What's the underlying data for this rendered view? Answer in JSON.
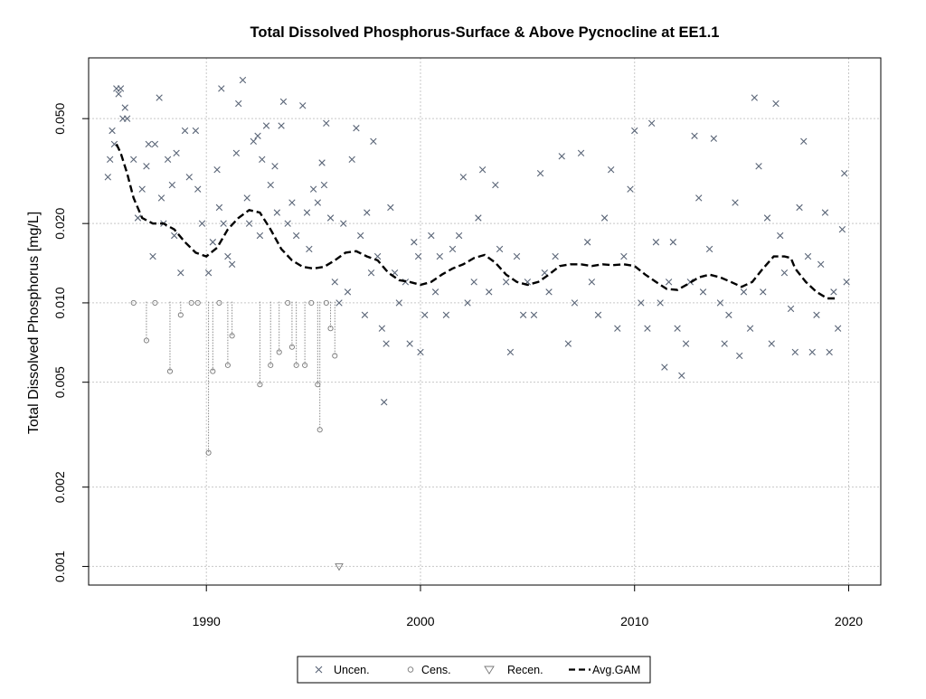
{
  "chart_data": {
    "type": "scatter",
    "title": "Total Dissolved Phosphorus-Surface & Above Pycnocline at EE1.1",
    "xlabel": "",
    "ylabel": "Total Dissolved Phosphorus [mg/L]",
    "y_scale": "log",
    "xlim": [
      1984.5,
      2021.5
    ],
    "ylim": [
      0.00085,
      0.085
    ],
    "x_ticks": [
      "1990",
      "2000",
      "2010",
      "2020"
    ],
    "y_ticks": [
      "0.001",
      "0.002",
      "0.005",
      "0.010",
      "0.020",
      "0.050"
    ],
    "grid": true,
    "legend_position": "bottom",
    "legend": [
      "Uncen.",
      "Cens.",
      "Recen.",
      "Avg.GAM"
    ],
    "series": [
      {
        "name": "Uncen.",
        "marker": "x",
        "color": "#5a6577",
        "points": [
          [
            1985.4,
            0.03
          ],
          [
            1985.5,
            0.035
          ],
          [
            1985.6,
            0.045
          ],
          [
            1985.7,
            0.04
          ],
          [
            1985.8,
            0.065
          ],
          [
            1985.9,
            0.062
          ],
          [
            1986.0,
            0.065
          ],
          [
            1986.1,
            0.05
          ],
          [
            1986.2,
            0.055
          ],
          [
            1986.3,
            0.05
          ],
          [
            1986.6,
            0.035
          ],
          [
            1986.8,
            0.021
          ],
          [
            1987.0,
            0.027
          ],
          [
            1987.2,
            0.033
          ],
          [
            1987.3,
            0.04
          ],
          [
            1987.5,
            0.015
          ],
          [
            1987.6,
            0.04
          ],
          [
            1987.8,
            0.06
          ],
          [
            1987.9,
            0.025
          ],
          [
            1988.0,
            0.02
          ],
          [
            1988.2,
            0.035
          ],
          [
            1988.4,
            0.028
          ],
          [
            1988.5,
            0.018
          ],
          [
            1988.6,
            0.037
          ],
          [
            1988.8,
            0.013
          ],
          [
            1989.0,
            0.045
          ],
          [
            1989.2,
            0.03
          ],
          [
            1989.5,
            0.045
          ],
          [
            1989.6,
            0.027
          ],
          [
            1989.8,
            0.02
          ],
          [
            1990.1,
            0.013
          ],
          [
            1990.3,
            0.017
          ],
          [
            1990.5,
            0.032
          ],
          [
            1990.6,
            0.023
          ],
          [
            1990.7,
            0.065
          ],
          [
            1990.8,
            0.02
          ],
          [
            1991.0,
            0.015
          ],
          [
            1991.2,
            0.014
          ],
          [
            1991.4,
            0.037
          ],
          [
            1991.5,
            0.057
          ],
          [
            1991.7,
            0.07
          ],
          [
            1991.9,
            0.025
          ],
          [
            1992.0,
            0.02
          ],
          [
            1992.2,
            0.041
          ],
          [
            1992.4,
            0.043
          ],
          [
            1992.5,
            0.018
          ],
          [
            1992.6,
            0.035
          ],
          [
            1992.8,
            0.047
          ],
          [
            1993.0,
            0.028
          ],
          [
            1993.2,
            0.033
          ],
          [
            1993.3,
            0.022
          ],
          [
            1993.5,
            0.047
          ],
          [
            1993.6,
            0.058
          ],
          [
            1993.8,
            0.02
          ],
          [
            1994.0,
            0.024
          ],
          [
            1994.2,
            0.018
          ],
          [
            1994.5,
            0.056
          ],
          [
            1994.7,
            0.022
          ],
          [
            1994.8,
            0.016
          ],
          [
            1995.0,
            0.027
          ],
          [
            1995.2,
            0.024
          ],
          [
            1995.4,
            0.034
          ],
          [
            1995.5,
            0.028
          ],
          [
            1995.6,
            0.048
          ],
          [
            1995.8,
            0.021
          ],
          [
            1996.0,
            0.012
          ],
          [
            1996.2,
            0.01
          ],
          [
            1996.4,
            0.02
          ],
          [
            1996.6,
            0.011
          ],
          [
            1996.8,
            0.035
          ],
          [
            1997.0,
            0.046
          ],
          [
            1997.2,
            0.018
          ],
          [
            1997.4,
            0.009
          ],
          [
            1997.5,
            0.022
          ],
          [
            1997.7,
            0.013
          ],
          [
            1997.8,
            0.041
          ],
          [
            1998.0,
            0.015
          ],
          [
            1998.2,
            0.008
          ],
          [
            1998.3,
            0.0042
          ],
          [
            1998.4,
            0.007
          ],
          [
            1998.6,
            0.023
          ],
          [
            1998.8,
            0.013
          ],
          [
            1999.0,
            0.01
          ],
          [
            1999.3,
            0.012
          ],
          [
            1999.5,
            0.007
          ],
          [
            1999.7,
            0.017
          ],
          [
            1999.9,
            0.015
          ],
          [
            2000.0,
            0.0065
          ],
          [
            2000.2,
            0.009
          ],
          [
            2000.5,
            0.018
          ],
          [
            2000.7,
            0.011
          ],
          [
            2000.9,
            0.015
          ],
          [
            2001.2,
            0.009
          ],
          [
            2001.5,
            0.016
          ],
          [
            2001.8,
            0.018
          ],
          [
            2002.0,
            0.03
          ],
          [
            2002.2,
            0.01
          ],
          [
            2002.5,
            0.012
          ],
          [
            2002.7,
            0.021
          ],
          [
            2002.9,
            0.032
          ],
          [
            2003.2,
            0.011
          ],
          [
            2003.5,
            0.028
          ],
          [
            2003.7,
            0.016
          ],
          [
            2004.0,
            0.012
          ],
          [
            2004.2,
            0.0065
          ],
          [
            2004.5,
            0.015
          ],
          [
            2004.8,
            0.009
          ],
          [
            2005.0,
            0.012
          ],
          [
            2005.3,
            0.009
          ],
          [
            2005.6,
            0.031
          ],
          [
            2005.8,
            0.013
          ],
          [
            2006.0,
            0.011
          ],
          [
            2006.3,
            0.015
          ],
          [
            2006.6,
            0.036
          ],
          [
            2006.9,
            0.007
          ],
          [
            2007.2,
            0.01
          ],
          [
            2007.5,
            0.037
          ],
          [
            2007.8,
            0.017
          ],
          [
            2008.0,
            0.012
          ],
          [
            2008.3,
            0.009
          ],
          [
            2008.6,
            0.021
          ],
          [
            2008.9,
            0.032
          ],
          [
            2009.2,
            0.008
          ],
          [
            2009.5,
            0.015
          ],
          [
            2009.8,
            0.027
          ],
          [
            2010.0,
            0.045
          ],
          [
            2010.3,
            0.01
          ],
          [
            2010.6,
            0.008
          ],
          [
            2010.8,
            0.048
          ],
          [
            2011.0,
            0.017
          ],
          [
            2011.2,
            0.01
          ],
          [
            2011.4,
            0.0057
          ],
          [
            2011.6,
            0.012
          ],
          [
            2011.8,
            0.017
          ],
          [
            2012.0,
            0.008
          ],
          [
            2012.2,
            0.0053
          ],
          [
            2012.4,
            0.007
          ],
          [
            2012.6,
            0.012
          ],
          [
            2012.8,
            0.043
          ],
          [
            2013.0,
            0.025
          ],
          [
            2013.2,
            0.011
          ],
          [
            2013.5,
            0.016
          ],
          [
            2013.7,
            0.042
          ],
          [
            2014.0,
            0.01
          ],
          [
            2014.2,
            0.007
          ],
          [
            2014.4,
            0.009
          ],
          [
            2014.7,
            0.024
          ],
          [
            2014.9,
            0.0063
          ],
          [
            2015.1,
            0.011
          ],
          [
            2015.4,
            0.008
          ],
          [
            2015.6,
            0.06
          ],
          [
            2015.8,
            0.033
          ],
          [
            2016.0,
            0.011
          ],
          [
            2016.2,
            0.021
          ],
          [
            2016.4,
            0.007
          ],
          [
            2016.6,
            0.057
          ],
          [
            2016.8,
            0.018
          ],
          [
            2017.0,
            0.013
          ],
          [
            2017.3,
            0.0095
          ],
          [
            2017.5,
            0.0065
          ],
          [
            2017.7,
            0.023
          ],
          [
            2017.9,
            0.041
          ],
          [
            2018.1,
            0.015
          ],
          [
            2018.3,
            0.0065
          ],
          [
            2018.5,
            0.009
          ],
          [
            2018.7,
            0.014
          ],
          [
            2018.9,
            0.022
          ],
          [
            2019.1,
            0.0065
          ],
          [
            2019.3,
            0.011
          ],
          [
            2019.5,
            0.008
          ],
          [
            2019.7,
            0.019
          ],
          [
            2019.8,
            0.031
          ],
          [
            2019.9,
            0.012
          ]
        ]
      },
      {
        "name": "Cens.",
        "marker": "circle",
        "color": "#777777",
        "points": [
          [
            1986.6,
            0.01
          ],
          [
            1987.2,
            0.0072
          ],
          [
            1987.6,
            0.01
          ],
          [
            1988.3,
            0.0055
          ],
          [
            1988.8,
            0.009
          ],
          [
            1989.3,
            0.01
          ],
          [
            1989.6,
            0.01
          ],
          [
            1990.1,
            0.0027
          ],
          [
            1990.3,
            0.0055
          ],
          [
            1990.6,
            0.01
          ],
          [
            1991.0,
            0.0058
          ],
          [
            1991.2,
            0.0075
          ],
          [
            1992.5,
            0.0049
          ],
          [
            1993.0,
            0.0058
          ],
          [
            1993.4,
            0.0065
          ],
          [
            1993.8,
            0.01
          ],
          [
            1994.0,
            0.0068
          ],
          [
            1994.2,
            0.0058
          ],
          [
            1994.6,
            0.0058
          ],
          [
            1994.9,
            0.01
          ],
          [
            1995.2,
            0.0049
          ],
          [
            1995.3,
            0.0033
          ],
          [
            1995.6,
            0.01
          ],
          [
            1995.8,
            0.008
          ],
          [
            1996.0,
            0.0063
          ]
        ]
      },
      {
        "name": "Recen.",
        "marker": "triangle-down",
        "color": "#777777",
        "points": [
          [
            1996.2,
            0.001
          ]
        ]
      },
      {
        "name": "Avg.GAM",
        "line": "dashed",
        "color": "#000000",
        "points": [
          [
            1985.8,
            0.04
          ],
          [
            1986.0,
            0.037
          ],
          [
            1986.3,
            0.031
          ],
          [
            1986.6,
            0.025
          ],
          [
            1987.0,
            0.021
          ],
          [
            1987.5,
            0.02
          ],
          [
            1988.0,
            0.02
          ],
          [
            1988.5,
            0.019
          ],
          [
            1989.0,
            0.017
          ],
          [
            1989.5,
            0.0155
          ],
          [
            1990.0,
            0.015
          ],
          [
            1990.5,
            0.0162
          ],
          [
            1991.0,
            0.019
          ],
          [
            1991.5,
            0.021
          ],
          [
            1992.0,
            0.0225
          ],
          [
            1992.5,
            0.022
          ],
          [
            1993.0,
            0.019
          ],
          [
            1993.5,
            0.016
          ],
          [
            1994.0,
            0.0145
          ],
          [
            1994.5,
            0.0137
          ],
          [
            1995.0,
            0.0135
          ],
          [
            1995.5,
            0.0137
          ],
          [
            1996.0,
            0.0145
          ],
          [
            1996.5,
            0.0155
          ],
          [
            1997.0,
            0.0157
          ],
          [
            1997.5,
            0.015
          ],
          [
            1998.0,
            0.0145
          ],
          [
            1998.5,
            0.013
          ],
          [
            1999.0,
            0.0122
          ],
          [
            1999.5,
            0.012
          ],
          [
            2000.0,
            0.0117
          ],
          [
            2000.5,
            0.012
          ],
          [
            2001.0,
            0.0128
          ],
          [
            2001.5,
            0.0135
          ],
          [
            2002.0,
            0.014
          ],
          [
            2002.5,
            0.0148
          ],
          [
            2003.0,
            0.0152
          ],
          [
            2003.5,
            0.0142
          ],
          [
            2004.0,
            0.0128
          ],
          [
            2004.5,
            0.012
          ],
          [
            2005.0,
            0.0117
          ],
          [
            2005.5,
            0.012
          ],
          [
            2006.0,
            0.0128
          ],
          [
            2006.5,
            0.0138
          ],
          [
            2007.0,
            0.014
          ],
          [
            2007.5,
            0.014
          ],
          [
            2008.0,
            0.0138
          ],
          [
            2008.5,
            0.014
          ],
          [
            2009.0,
            0.0139
          ],
          [
            2009.5,
            0.014
          ],
          [
            2010.0,
            0.0138
          ],
          [
            2010.5,
            0.0128
          ],
          [
            2011.0,
            0.012
          ],
          [
            2011.5,
            0.0113
          ],
          [
            2012.0,
            0.0112
          ],
          [
            2012.5,
            0.0118
          ],
          [
            2013.0,
            0.0125
          ],
          [
            2013.5,
            0.0128
          ],
          [
            2014.0,
            0.0125
          ],
          [
            2014.5,
            0.012
          ],
          [
            2015.0,
            0.0115
          ],
          [
            2015.5,
            0.012
          ],
          [
            2016.0,
            0.0135
          ],
          [
            2016.5,
            0.015
          ],
          [
            2017.0,
            0.015
          ],
          [
            2017.3,
            0.0148
          ],
          [
            2017.5,
            0.0135
          ],
          [
            2018.0,
            0.012
          ],
          [
            2018.5,
            0.011
          ],
          [
            2019.0,
            0.0104
          ],
          [
            2019.5,
            0.0104
          ]
        ]
      }
    ]
  }
}
